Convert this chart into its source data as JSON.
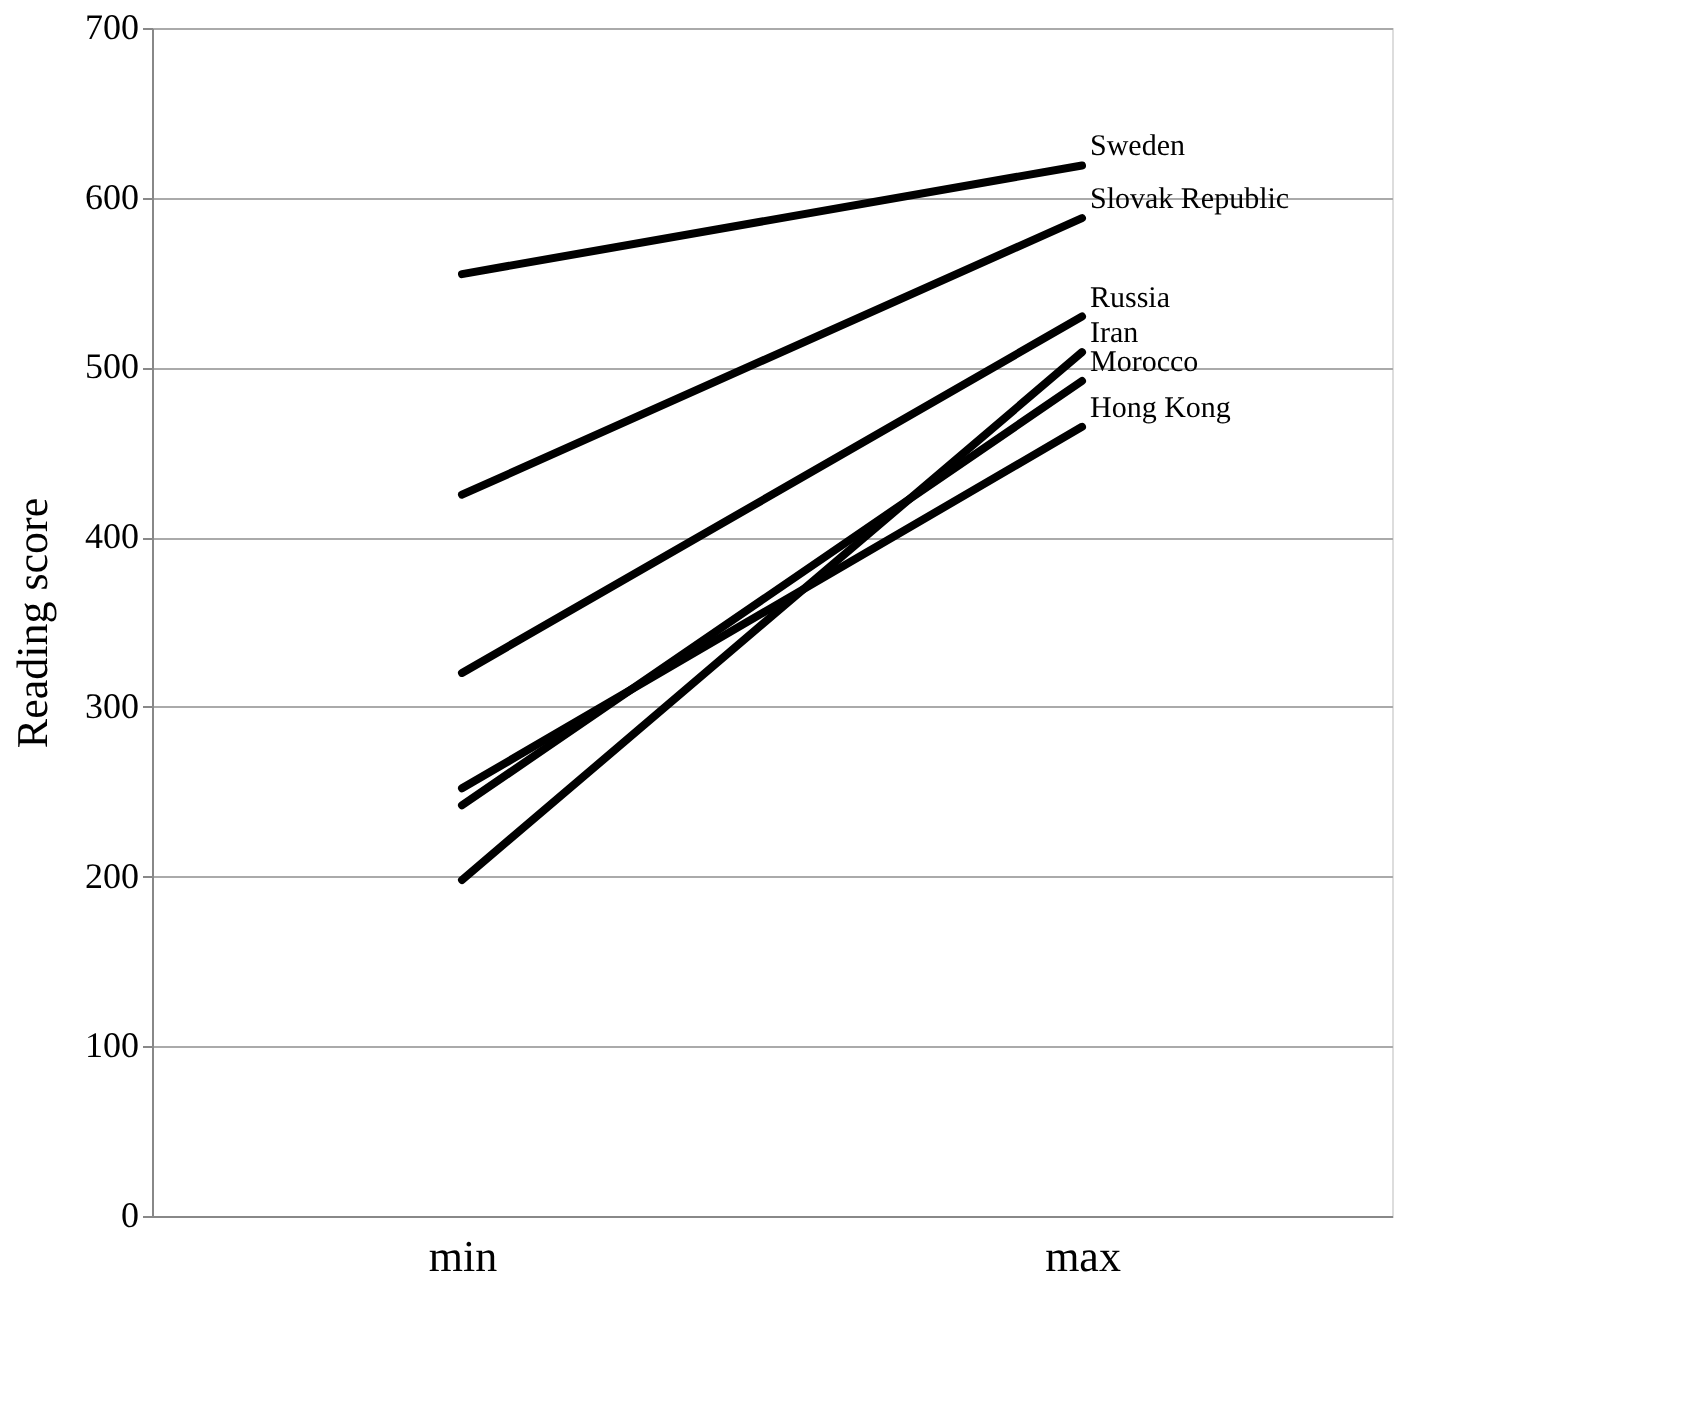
{
  "chart_data": {
    "type": "line",
    "ylabel": "Reading score",
    "categories": [
      "min",
      "max"
    ],
    "ylim": [
      0,
      700
    ],
    "yticks": [
      0,
      100,
      200,
      300,
      400,
      500,
      600,
      700
    ],
    "grid": "y",
    "legend": false,
    "marker": "none",
    "line_style": "solid",
    "series": [
      {
        "name": "Sweden",
        "color": "#000000",
        "values": [
          555,
          619
        ]
      },
      {
        "name": "Slovak Republic",
        "color": "#000000",
        "values": [
          425,
          588
        ]
      },
      {
        "name": "Russia",
        "color": "#000000",
        "values": [
          320,
          530
        ]
      },
      {
        "name": "Iran",
        "color": "#000000",
        "values": [
          198,
          509
        ]
      },
      {
        "name": "Morocco",
        "color": "#000000",
        "values": [
          242,
          492
        ]
      },
      {
        "name": "Hong Kong",
        "color": "#000000",
        "values": [
          252,
          465
        ]
      }
    ]
  }
}
